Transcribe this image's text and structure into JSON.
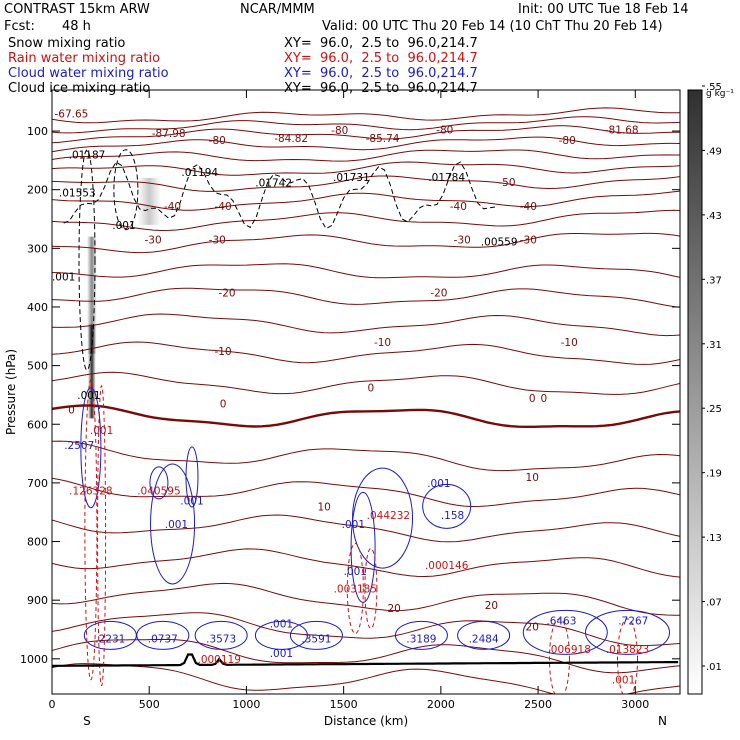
{
  "header": {
    "model": "CONTRAST 15km ARW",
    "center": "NCAR/MMM",
    "init": "Init: 00 UTC Tue 18 Feb 14",
    "fcst_label": "Fcst:",
    "fcst_value": "48 h",
    "valid": "Valid: 00 UTC Thu 20 Feb 14 (10 ChT Thu 20 Feb 14)"
  },
  "fields": [
    {
      "name": "Snow mixing ratio",
      "xy": "XY=  96.0,  2.5 to  96.0,214.7",
      "color": "#000000"
    },
    {
      "name": "Rain water mixing ratio",
      "xy": "XY=  96.0,  2.5 to  96.0,214.7",
      "color": "#d01010"
    },
    {
      "name": "Cloud water mixing ratio",
      "xy": "XY=  96.0,  2.5 to  96.0,214.7",
      "color": "#1a1ad0"
    },
    {
      "name": "Cloud ice mixing ratio",
      "xy": "XY=  96.0,  2.5 to  96.0,214.7",
      "color": "#000000"
    }
  ],
  "chart_data": {
    "type": "cross-section",
    "xlabel": "Distance (km)",
    "ylabel": "Pressure (hPa)",
    "xlim": [
      0,
      3230
    ],
    "ylim": [
      1060,
      30
    ],
    "xticks": [
      0,
      500,
      1000,
      1500,
      2000,
      2500,
      3000
    ],
    "yticks": [
      100,
      200,
      300,
      400,
      500,
      600,
      700,
      800,
      900,
      1000
    ],
    "end_labels": {
      "left": "S",
      "right": "N"
    },
    "colorbar": {
      "units": "g kg⁻¹",
      "labels": [
        ".01",
        ".07",
        ".13",
        ".19",
        ".25",
        ".31",
        ".37",
        ".43",
        ".49",
        ".55"
      ]
    },
    "temperature_contour_labels": [
      {
        "text": "-67.65",
        "x": 100,
        "p": 70
      },
      {
        "text": "-80",
        "x": 850,
        "p": 115
      },
      {
        "text": "-80",
        "x": 1480,
        "p": 98
      },
      {
        "text": "-80",
        "x": 2020,
        "p": 97
      },
      {
        "text": "-80",
        "x": 2650,
        "p": 115
      },
      {
        "text": "-81.68",
        "x": 2930,
        "p": 97
      },
      {
        "text": "-87.98",
        "x": 600,
        "p": 103
      },
      {
        "text": "-84.82",
        "x": 1230,
        "p": 112
      },
      {
        "text": "-85.74",
        "x": 1700,
        "p": 112
      },
      {
        "text": "-50",
        "x": 2340,
        "p": 187
      },
      {
        "text": "-40",
        "x": 620,
        "p": 228
      },
      {
        "text": "-40",
        "x": 880,
        "p": 228
      },
      {
        "text": "-40",
        "x": 2090,
        "p": 228
      },
      {
        "text": "-40",
        "x": 2450,
        "p": 228
      },
      {
        "text": "-30",
        "x": 520,
        "p": 285
      },
      {
        "text": "-30",
        "x": 850,
        "p": 285
      },
      {
        "text": "-30",
        "x": 2110,
        "p": 285
      },
      {
        "text": "-30",
        "x": 2450,
        "p": 285
      },
      {
        "text": "-20",
        "x": 900,
        "p": 375
      },
      {
        "text": "-20",
        "x": 1990,
        "p": 375
      },
      {
        "text": "-10",
        "x": 880,
        "p": 475
      },
      {
        "text": "-10",
        "x": 1700,
        "p": 460
      },
      {
        "text": "-10",
        "x": 2660,
        "p": 460
      },
      {
        "text": "0",
        "x": 100,
        "p": 575
      },
      {
        "text": "0",
        "x": 880,
        "p": 565
      },
      {
        "text": "0",
        "x": 1640,
        "p": 537
      },
      {
        "text": "0",
        "x": 2470,
        "p": 555
      },
      {
        "text": "0",
        "x": 2530,
        "p": 555
      },
      {
        "text": "10",
        "x": 1400,
        "p": 740
      },
      {
        "text": "10",
        "x": 2470,
        "p": 690
      },
      {
        "text": "20",
        "x": 1760,
        "p": 913
      },
      {
        "text": "20",
        "x": 2260,
        "p": 908
      },
      {
        "text": "20",
        "x": 2470,
        "p": 945
      }
    ],
    "max_labels": [
      {
        "series": "snow",
        "text": ".01187",
        "x": 180,
        "p": 140
      },
      {
        "series": "snow",
        "text": ".01194",
        "x": 760,
        "p": 170
      },
      {
        "series": "snow",
        "text": ".01742",
        "x": 1140,
        "p": 188
      },
      {
        "series": "snow",
        "text": ".01731",
        "x": 1540,
        "p": 178
      },
      {
        "series": "snow",
        "text": ".01784",
        "x": 2030,
        "p": 178
      },
      {
        "series": "snow",
        "text": ".01553",
        "x": 130,
        "p": 205
      },
      {
        "series": "snow",
        "text": ".001",
        "x": 370,
        "p": 260
      },
      {
        "series": "snow",
        "text": ".001",
        "x": 60,
        "p": 348
      },
      {
        "series": "snow",
        "text": ".00559",
        "x": 2300,
        "p": 288
      },
      {
        "series": "ice",
        "text": ".001",
        "x": 190,
        "p": 550
      },
      {
        "series": "cloud",
        "text": ".2507",
        "x": 140,
        "p": 635
      },
      {
        "series": "rain",
        "text": ".001",
        "x": 255,
        "p": 610
      },
      {
        "series": "rain",
        "text": ".126328",
        "x": 200,
        "p": 713
      },
      {
        "series": "rain",
        "text": ".040595",
        "x": 550,
        "p": 713
      },
      {
        "series": "cloud",
        "text": ".001",
        "x": 720,
        "p": 730
      },
      {
        "series": "cloud",
        "text": ".001",
        "x": 640,
        "p": 770
      },
      {
        "series": "cloud",
        "text": ".001",
        "x": 1550,
        "p": 770
      },
      {
        "series": "cloud",
        "text": ".001",
        "x": 1560,
        "p": 850
      },
      {
        "series": "cloud",
        "text": ".001",
        "x": 1990,
        "p": 700
      },
      {
        "series": "cloud",
        "text": ".158",
        "x": 2060,
        "p": 755
      },
      {
        "series": "rain",
        "text": ".044232",
        "x": 1730,
        "p": 755
      },
      {
        "series": "rain",
        "text": ".003185",
        "x": 1560,
        "p": 880
      },
      {
        "series": "rain",
        "text": ".000146",
        "x": 2030,
        "p": 840
      },
      {
        "series": "cloud",
        "text": ".2231",
        "x": 300,
        "p": 965
      },
      {
        "series": "cloud",
        "text": ".0737",
        "x": 570,
        "p": 965
      },
      {
        "series": "cloud",
        "text": ".3573",
        "x": 870,
        "p": 965
      },
      {
        "series": "rain",
        "text": ".000119",
        "x": 860,
        "p": 1000
      },
      {
        "series": "cloud",
        "text": ".001",
        "x": 1180,
        "p": 940
      },
      {
        "series": "cloud",
        "text": ".001",
        "x": 1180,
        "p": 990
      },
      {
        "series": "cloud",
        "text": ".3591",
        "x": 1360,
        "p": 965
      },
      {
        "series": "cloud",
        "text": ".3189",
        "x": 1900,
        "p": 965
      },
      {
        "series": "cloud",
        "text": ".2484",
        "x": 2220,
        "p": 965
      },
      {
        "series": "cloud",
        "text": ".6463",
        "x": 2620,
        "p": 935
      },
      {
        "series": "cloud",
        "text": ".7267",
        "x": 2990,
        "p": 935
      },
      {
        "series": "rain",
        "text": ".006918",
        "x": 2660,
        "p": 983
      },
      {
        "series": "rain",
        "text": ".013823",
        "x": 2960,
        "p": 983
      },
      {
        "series": "rain",
        "text": ".001",
        "x": 2940,
        "p": 1035
      }
    ]
  }
}
